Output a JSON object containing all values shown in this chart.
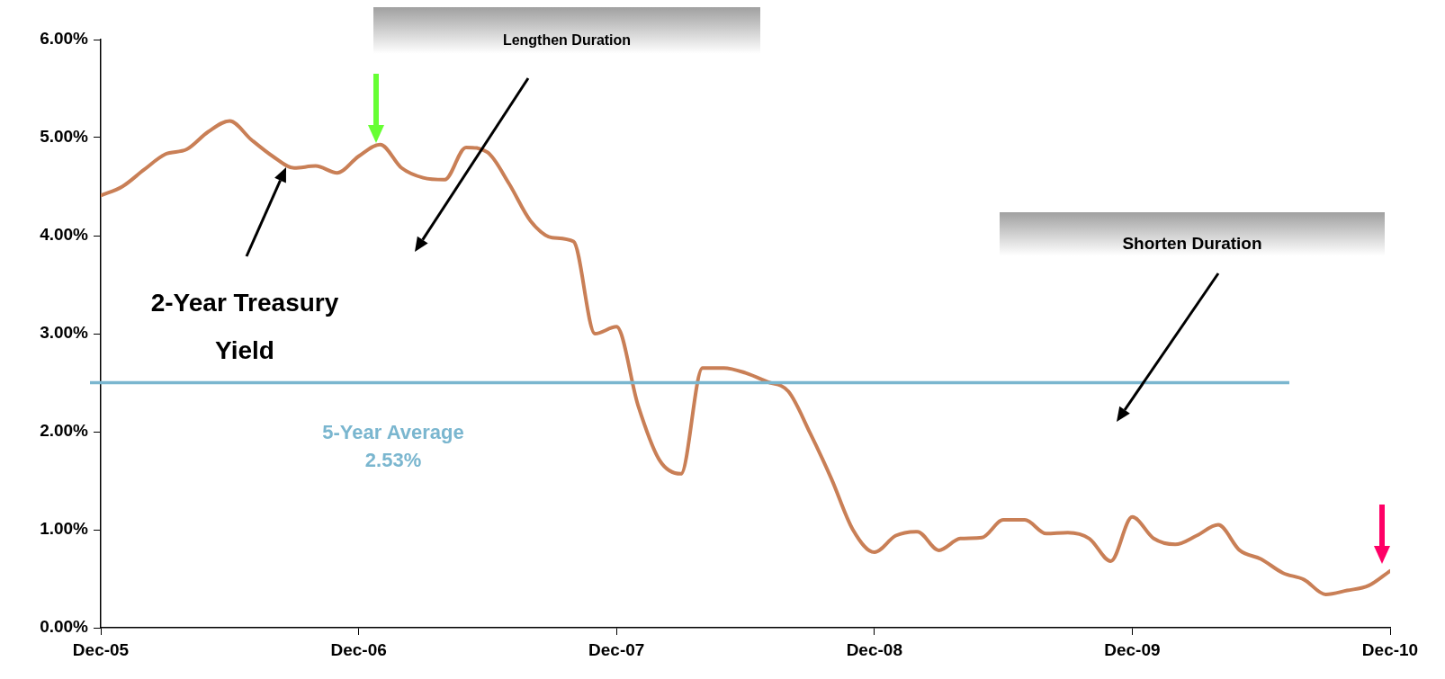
{
  "chart_data": {
    "type": "line",
    "x": [
      "2005-12",
      "2006-01",
      "2006-02",
      "2006-03",
      "2006-04",
      "2006-05",
      "2006-06",
      "2006-07",
      "2006-08",
      "2006-09",
      "2006-10",
      "2006-11",
      "2006-12",
      "2007-01",
      "2007-02",
      "2007-03",
      "2007-04",
      "2007-05",
      "2007-06",
      "2007-07",
      "2007-08",
      "2007-09",
      "2007-10",
      "2007-11",
      "2007-12",
      "2008-01",
      "2008-02",
      "2008-03",
      "2008-04",
      "2008-05",
      "2008-06",
      "2008-07",
      "2008-08",
      "2008-09",
      "2008-10",
      "2008-11",
      "2008-12",
      "2009-01",
      "2009-02",
      "2009-03",
      "2009-04",
      "2009-05",
      "2009-06",
      "2009-07",
      "2009-08",
      "2009-09",
      "2009-10",
      "2009-11",
      "2009-12",
      "2010-01",
      "2010-02",
      "2010-03",
      "2010-04",
      "2010-05",
      "2010-06",
      "2010-07",
      "2010-08",
      "2010-09",
      "2010-10",
      "2010-11",
      "2010-12"
    ],
    "series": [
      {
        "color": "#c97f56",
        "values": [
          4.41,
          4.5,
          4.67,
          4.83,
          4.88,
          5.06,
          5.17,
          4.98,
          4.81,
          4.69,
          4.71,
          4.64,
          4.81,
          4.93,
          4.69,
          4.59,
          4.57,
          4.9,
          4.85,
          4.53,
          4.15,
          3.98,
          3.94,
          3.0,
          3.07,
          2.27,
          1.71,
          1.57,
          2.65,
          2.65,
          2.6,
          2.51,
          2.41,
          1.99,
          1.52,
          1.0,
          0.77,
          0.94,
          0.98,
          0.79,
          0.91,
          0.92,
          1.1,
          1.1,
          0.96,
          0.97,
          0.91,
          0.68,
          1.13,
          0.91,
          0.85,
          0.94,
          1.05,
          0.79,
          0.7,
          0.56,
          0.49,
          0.34,
          0.38,
          0.43,
          0.58
        ]
      }
    ],
    "xlim": [
      "2005-12",
      "2010-12"
    ],
    "xticks": [
      {
        "value": "2005-12",
        "label": "Dec-05"
      },
      {
        "value": "2006-12",
        "label": "Dec-06"
      },
      {
        "value": "2007-12",
        "label": "Dec-07"
      },
      {
        "value": "2008-12",
        "label": "Dec-08"
      },
      {
        "value": "2009-12",
        "label": "Dec-09"
      },
      {
        "value": "2010-12",
        "label": "Dec-10"
      }
    ],
    "ylim": [
      0,
      6
    ],
    "yticks": [
      {
        "value": 0,
        "label": "0.00%"
      },
      {
        "value": 1,
        "label": "1.00%"
      },
      {
        "value": 2,
        "label": "2.00%"
      },
      {
        "value": 3,
        "label": "3.00%"
      },
      {
        "value": 4,
        "label": "4.00%"
      },
      {
        "value": 5,
        "label": "5.00%"
      },
      {
        "value": 6,
        "label": "6.00%"
      }
    ],
    "ref_lines": [
      {
        "axis": "y",
        "value": 2.5,
        "label": "5-Year Average\n2.53%",
        "color": "#7ab6cf"
      }
    ],
    "annotations": [
      "2-Year Treasury Yield",
      "Lengthen Duration",
      "Shorten Duration"
    ],
    "grid": false,
    "legend": false,
    "marker": "none",
    "line_style": "solid"
  }
}
